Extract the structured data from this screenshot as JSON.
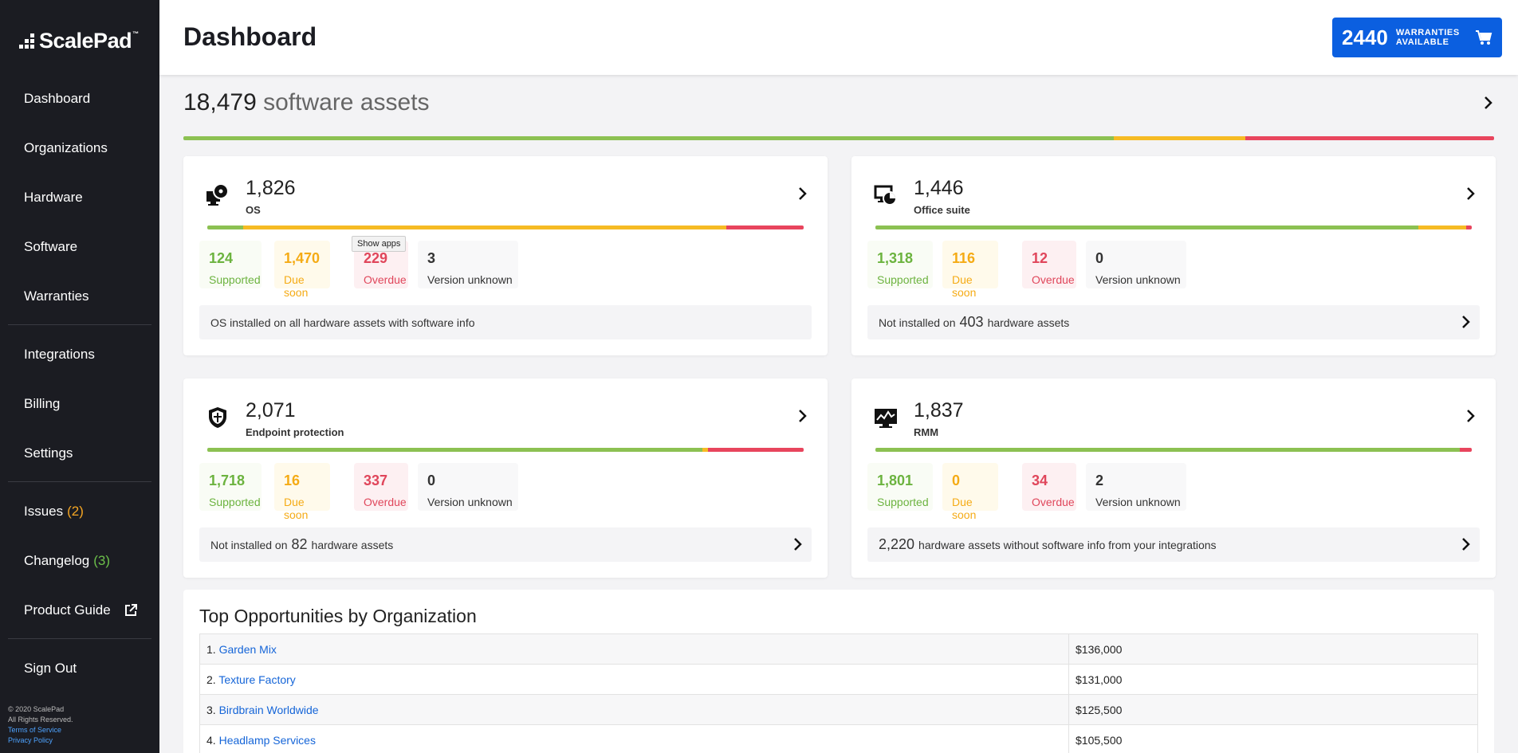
{
  "sidebar": {
    "logo_text": "ScalePad",
    "logo_tm": "™",
    "items": [
      {
        "label": "Dashboard"
      },
      {
        "label": "Organizations"
      },
      {
        "label": "Hardware"
      },
      {
        "label": "Software"
      },
      {
        "label": "Warranties"
      },
      {
        "label": "Integrations"
      },
      {
        "label": "Billing"
      },
      {
        "label": "Settings"
      }
    ],
    "issues": {
      "label": "Issues",
      "count": "(2)"
    },
    "changelog": {
      "label": "Changelog",
      "count": "(3)"
    },
    "product_guide": "Product Guide",
    "sign_out": "Sign Out",
    "footer": {
      "copyright": "© 2020 ScalePad",
      "rights": "All Rights Reserved.",
      "terms": "Terms of Service",
      "privacy": "Privacy Policy"
    }
  },
  "header": {
    "title": "Dashboard",
    "warranty_count": "2440",
    "warranty_label_1": "WARRANTIES",
    "warranty_label_2": "AVAILABLE"
  },
  "software": {
    "count": "18,479",
    "label": "software assets",
    "bar": {
      "supported": 0.71,
      "due_soon": 0.1,
      "overdue": 0.19
    }
  },
  "cards": [
    {
      "count": "1,826",
      "label": "OS",
      "icon": "os-disc-icon",
      "bar": {
        "supported": 0.06,
        "due_soon": 0.81,
        "overdue": 0.13
      },
      "stats": {
        "supported": "124",
        "due_soon": "1,470",
        "overdue": "229",
        "unknown": "3"
      },
      "note": "OS installed on all hardware assets with software info"
    },
    {
      "count": "1,446",
      "label": "Office suite",
      "icon": "office-chart-icon",
      "bar": {
        "supported": 0.91,
        "due_soon": 0.08,
        "overdue": 0.01
      },
      "stats": {
        "supported": "1,318",
        "due_soon": "116",
        "overdue": "12",
        "unknown": "0"
      },
      "note_prefix": "Not installed on",
      "note_value": "403",
      "note_suffix": "hardware assets"
    },
    {
      "count": "2,071",
      "label": "Endpoint protection",
      "icon": "shield-icon",
      "bar": {
        "supported": 0.83,
        "due_soon": 0.01,
        "overdue": 0.16
      },
      "stats": {
        "supported": "1,718",
        "due_soon": "16",
        "overdue": "337",
        "unknown": "0"
      },
      "note_prefix": "Not installed on",
      "note_value": "82",
      "note_suffix": "hardware assets"
    },
    {
      "count": "1,837",
      "label": "RMM",
      "icon": "monitor-icon",
      "bar": {
        "supported": 0.98,
        "due_soon": 0.0,
        "overdue": 0.02
      },
      "stats": {
        "supported": "1,801",
        "due_soon": "0",
        "overdue": "34",
        "unknown": "2"
      },
      "note_value": "2,220",
      "note_suffix": "hardware assets without software info from your integrations"
    }
  ],
  "stat_labels": {
    "supported": "Supported",
    "due_soon": "Due soon",
    "overdue": "Overdue",
    "unknown": "Version unknown"
  },
  "tooltip": "Show apps",
  "opportunities": {
    "title": "Top Opportunities by Organization",
    "rows": [
      {
        "rank": "1.",
        "name": "Garden Mix",
        "value": "$136,000"
      },
      {
        "rank": "2.",
        "name": "Texture Factory",
        "value": "$131,000"
      },
      {
        "rank": "3.",
        "name": "Birdbrain Worldwide",
        "value": "$125,500"
      },
      {
        "rank": "4.",
        "name": "Headlamp Services",
        "value": "$105,500"
      }
    ]
  },
  "colors": {
    "supported": "#8cc152",
    "due_soon": "#f6bb24",
    "overdue": "#e8455d",
    "accent": "#0b5fe0",
    "sidebar": "#1b1c22"
  }
}
